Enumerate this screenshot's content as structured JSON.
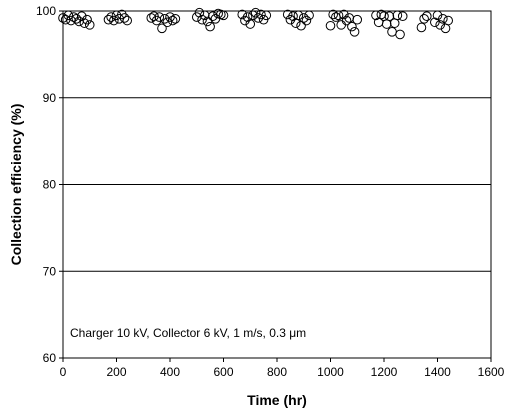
{
  "chart_data": {
    "type": "scatter",
    "xlabel": "Time (hr)",
    "ylabel": "Collection efficiency (%)",
    "xlim": [
      0,
      1600
    ],
    "ylim": [
      60,
      100
    ],
    "xticks": [
      0,
      200,
      400,
      600,
      800,
      1000,
      1200,
      1400,
      1600
    ],
    "yticks": [
      60,
      70,
      80,
      90,
      100
    ],
    "xtick_labels": [
      "0",
      "200",
      "400",
      "600",
      "800",
      "1000",
      "1200",
      "1400",
      "1600"
    ],
    "ytick_labels": [
      "60",
      "70",
      "80",
      "90",
      "100"
    ],
    "grid": "horizontal",
    "marker": "open-circle",
    "annotation": "Charger 10 kV, Collector 6 kV, 1 m/s, 0.3 μm",
    "series": [
      {
        "x": [
          0,
          10,
          20,
          30,
          40,
          50,
          60,
          70,
          80,
          90,
          100,
          170,
          180,
          190,
          200,
          210,
          220,
          230,
          240,
          330,
          340,
          350,
          360,
          370,
          380,
          390,
          400,
          410,
          420,
          500,
          510,
          520,
          530,
          540,
          550,
          560,
          570,
          580,
          590,
          600,
          670,
          680,
          690,
          700,
          710,
          720,
          730,
          740,
          750,
          760,
          840,
          850,
          860,
          870,
          880,
          890,
          900,
          910,
          920,
          1000,
          1010,
          1020,
          1030,
          1040,
          1050,
          1060,
          1070,
          1080,
          1090,
          1100,
          1170,
          1180,
          1190,
          1200,
          1210,
          1220,
          1230,
          1240,
          1250,
          1260,
          1270,
          1340,
          1350,
          1360,
          1390,
          1400,
          1410,
          1420,
          1430,
          1440
        ],
        "y": [
          99.2,
          99.0,
          99.5,
          98.9,
          99.3,
          99.1,
          98.8,
          99.4,
          98.6,
          99.0,
          98.4,
          99.0,
          99.3,
          98.9,
          99.5,
          99.1,
          99.6,
          99.2,
          98.9,
          99.2,
          99.4,
          98.9,
          99.3,
          98.0,
          99.1,
          98.7,
          99.3,
          98.9,
          99.1,
          99.3,
          99.8,
          99.0,
          99.5,
          98.8,
          98.2,
          99.4,
          99.1,
          99.7,
          99.6,
          99.5,
          99.6,
          98.9,
          99.3,
          98.5,
          99.5,
          99.8,
          99.2,
          99.6,
          99.0,
          99.5,
          99.6,
          99.0,
          99.4,
          98.6,
          99.5,
          98.3,
          99.2,
          98.9,
          99.5,
          98.3,
          99.6,
          99.3,
          99.5,
          98.4,
          99.6,
          98.9,
          99.2,
          98.2,
          97.6,
          99.0,
          99.5,
          98.7,
          99.6,
          99.4,
          98.5,
          99.4,
          97.6,
          98.6,
          99.5,
          97.3,
          99.4,
          98.1,
          99.1,
          99.4,
          98.7,
          99.5,
          98.4,
          99.1,
          98.0,
          98.9
        ]
      }
    ]
  }
}
